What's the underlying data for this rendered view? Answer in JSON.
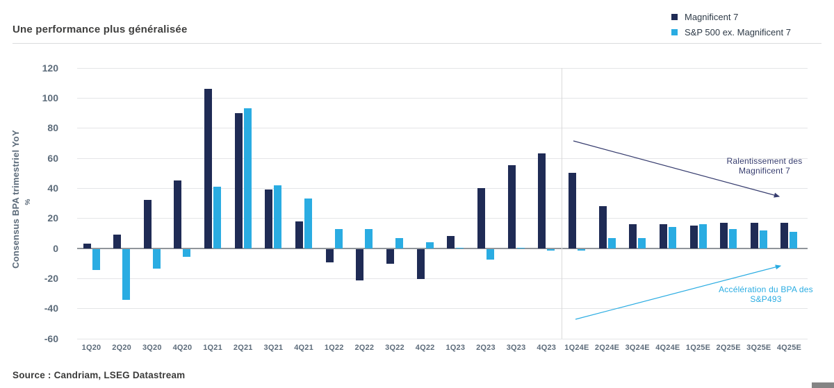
{
  "header": {
    "title": "Une performance plus généralisée"
  },
  "legend": [
    {
      "label": "Magnificent 7",
      "color": "#1f2b55"
    },
    {
      "label": "S&P 500 ex. Magnificent 7",
      "color": "#2aace2"
    }
  ],
  "chart_data": {
    "type": "bar",
    "title": "Une performance plus généralisée",
    "ylabel": "Consensus BPA trimestriel YoY",
    "ylabel_unit": "%",
    "ylim": [
      -60,
      120
    ],
    "ytick_step": 20,
    "yticks": [
      120,
      100,
      80,
      60,
      40,
      20,
      0,
      -20,
      -40,
      -60
    ],
    "grid": true,
    "legend_position": "top-right",
    "categories": [
      "1Q20",
      "2Q20",
      "3Q20",
      "4Q20",
      "1Q21",
      "2Q21",
      "3Q21",
      "4Q21",
      "1Q22",
      "2Q22",
      "3Q22",
      "4Q22",
      "1Q23",
      "2Q23",
      "3Q23",
      "4Q23",
      "1Q24E",
      "2Q24E",
      "3Q24E",
      "4Q24E",
      "1Q25E",
      "2Q25E",
      "3Q25E",
      "4Q25E"
    ],
    "series": [
      {
        "name": "Magnificent 7",
        "color": "#1f2b55",
        "values": [
          3,
          9,
          32,
          45,
          106,
          90,
          39,
          18,
          -9,
          -21,
          -10,
          -20,
          8,
          40,
          55,
          63,
          50,
          28,
          16,
          16,
          15,
          17,
          17,
          17
        ]
      },
      {
        "name": "S&P 500 ex. Magnificent 7",
        "color": "#2aace2",
        "values": [
          -14,
          -34,
          -13,
          -5,
          41,
          93,
          42,
          33,
          13,
          13,
          7,
          4,
          0.5,
          -7,
          0.5,
          -1,
          -1,
          7,
          7,
          14,
          16,
          13,
          12,
          11
        ]
      }
    ],
    "divider_after_category": "4Q23",
    "annotations": [
      {
        "text": "Ralentissement des Magnificent 7",
        "color": "#363c6e",
        "arrow_direction": "down-right"
      },
      {
        "text": "Accélération du BPA des S&P493",
        "color": "#2aace2",
        "arrow_direction": "up-right"
      }
    ]
  },
  "footer": {
    "source": "Source : Candriam, LSEG Datastream"
  }
}
